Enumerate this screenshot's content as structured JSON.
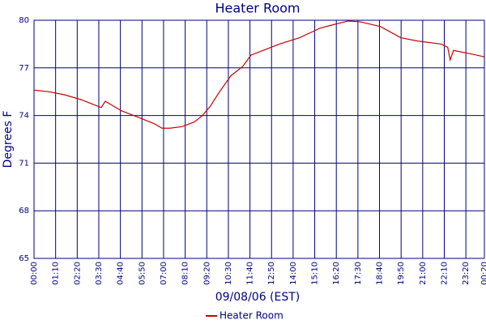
{
  "chart_data": {
    "type": "line",
    "title": "Heater Room",
    "x_label": "09/08/06 (EST)",
    "y_label": "Degrees F",
    "x": [
      0,
      47,
      100,
      152,
      205,
      218,
      231,
      257,
      283,
      336,
      388,
      415,
      441,
      480,
      520,
      546,
      572,
      598,
      638,
      677,
      703,
      743,
      795,
      861,
      927,
      966,
      1018,
      1058,
      1123,
      1189,
      1241,
      1320,
      1341,
      1349,
      1360,
      1412,
      1459
    ],
    "series": [
      {
        "name": "Heater Room",
        "color": "#cc0000",
        "values": [
          75.6,
          75.5,
          75.3,
          75.0,
          74.6,
          74.5,
          74.9,
          74.6,
          74.3,
          73.9,
          73.5,
          73.2,
          73.2,
          73.3,
          73.6,
          74.0,
          74.6,
          75.4,
          76.5,
          77.1,
          77.8,
          78.1,
          78.5,
          78.9,
          79.5,
          79.7,
          79.95,
          79.9,
          79.6,
          78.9,
          78.7,
          78.5,
          78.3,
          77.5,
          78.1,
          77.9,
          77.7
        ]
      }
    ],
    "xlim": [
      0,
      1460
    ],
    "xticks": [
      {
        "value": 0,
        "label": "00:00"
      },
      {
        "value": 70,
        "label": "01:10"
      },
      {
        "value": 140,
        "label": "02:20"
      },
      {
        "value": 210,
        "label": "03:30"
      },
      {
        "value": 280,
        "label": "04:40"
      },
      {
        "value": 350,
        "label": "05:50"
      },
      {
        "value": 420,
        "label": "07:00"
      },
      {
        "value": 490,
        "label": "08:10"
      },
      {
        "value": 560,
        "label": "09:20"
      },
      {
        "value": 630,
        "label": "10:30"
      },
      {
        "value": 700,
        "label": "11:40"
      },
      {
        "value": 770,
        "label": "12:50"
      },
      {
        "value": 840,
        "label": "14:00"
      },
      {
        "value": 910,
        "label": "15:10"
      },
      {
        "value": 980,
        "label": "16:20"
      },
      {
        "value": 1050,
        "label": "17:30"
      },
      {
        "value": 1120,
        "label": "18:40"
      },
      {
        "value": 1190,
        "label": "19:50"
      },
      {
        "value": 1260,
        "label": "21:00"
      },
      {
        "value": 1330,
        "label": "22:10"
      },
      {
        "value": 1400,
        "label": "23:20"
      },
      {
        "value": 1460,
        "label": "00:20"
      }
    ],
    "ylim": [
      65,
      80
    ],
    "yticks": [
      65,
      68,
      71,
      74,
      77,
      80
    ],
    "grid": true,
    "grid_color": "#000080",
    "legend": "bottom"
  }
}
